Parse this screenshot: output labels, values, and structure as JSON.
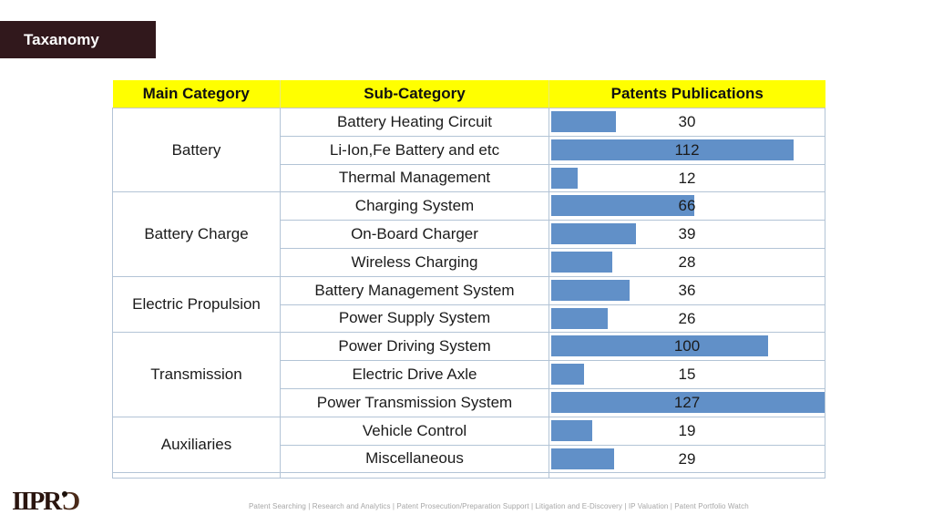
{
  "slide": {
    "title_badge": "Taxanomy"
  },
  "table": {
    "headers": [
      "Main Category",
      "Sub-Category",
      "Patents Publications"
    ]
  },
  "chart_data": {
    "type": "bar",
    "orientation": "horizontal",
    "title": "Taxanomy",
    "value_series_label": "Patents Publications",
    "value_axis_max": 127,
    "bar_color": "#6190c8",
    "groups": [
      {
        "category": "Battery",
        "rows": [
          {
            "label": "Battery Heating Circuit",
            "value": 30
          },
          {
            "label": "Li-Ion,Fe Battery and etc",
            "value": 112
          },
          {
            "label": "Thermal Management",
            "value": 12
          }
        ]
      },
      {
        "category": "Battery Charge",
        "rows": [
          {
            "label": "Charging System",
            "value": 66
          },
          {
            "label": "On-Board Charger",
            "value": 39
          },
          {
            "label": "Wireless Charging",
            "value": 28
          }
        ]
      },
      {
        "category": "Electric Propulsion",
        "rows": [
          {
            "label": "Battery Management System",
            "value": 36
          },
          {
            "label": "Power Supply System",
            "value": 26
          }
        ]
      },
      {
        "category": "Transmission",
        "rows": [
          {
            "label": "Power Driving System",
            "value": 100
          },
          {
            "label": "Electric Drive Axle",
            "value": 15
          },
          {
            "label": "Power Transmission System",
            "value": 127
          }
        ]
      },
      {
        "category": "Auxiliaries",
        "rows": [
          {
            "label": "Vehicle Control",
            "value": 19
          },
          {
            "label": "Miscellaneous",
            "value": 29
          }
        ]
      }
    ]
  },
  "footer": {
    "logo_part1": "IIPR",
    "logo_part2": "Ɔ",
    "services": "Patent Searching | Research and Analytics | Patent Prosecution/Preparation Support | Litigation and E-Discovery | IP Valuation | Patent Portfolio Watch"
  },
  "colors": {
    "badge_bg": "#31181c",
    "header_bg": "#ffff00",
    "bar": "#6190c8",
    "grid": "#b3c4d6"
  }
}
